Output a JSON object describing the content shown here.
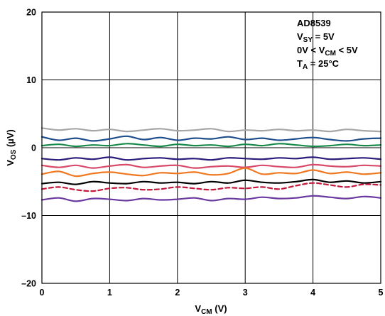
{
  "chart_data": {
    "type": "line",
    "title": "",
    "xlabel": {
      "main": "V",
      "sub": "CM",
      "suffix": " (V)"
    },
    "ylabel": {
      "main": "V",
      "sub": "OS",
      "suffix": " (µV)"
    },
    "xlim": [
      0,
      5
    ],
    "ylim": [
      -20,
      20
    ],
    "x_ticks": [
      0,
      1,
      2,
      3,
      4,
      5
    ],
    "y_ticks": [
      -20,
      -10,
      0,
      10,
      20
    ],
    "y_tick_labels": [
      "–20",
      "–10",
      "0",
      "10",
      "20"
    ],
    "grid": true,
    "legend": "none",
    "annotations": [
      {
        "parts": [
          {
            "t": "AD8539"
          }
        ]
      },
      {
        "parts": [
          {
            "t": "V"
          },
          {
            "t": "SY",
            "sub": true
          },
          {
            "t": " = 5V"
          }
        ]
      },
      {
        "parts": [
          {
            "t": "0V < V"
          },
          {
            "t": "CM",
            "sub": true
          },
          {
            "t": " < 5V"
          }
        ]
      },
      {
        "parts": [
          {
            "t": "T"
          },
          {
            "t": "A",
            "sub": true
          },
          {
            "t": " = 25°C"
          }
        ]
      }
    ],
    "x": [
      0,
      0.25,
      0.5,
      0.75,
      1,
      1.25,
      1.5,
      1.75,
      2,
      2.25,
      2.5,
      2.75,
      3,
      3.25,
      3.5,
      3.75,
      4,
      4.25,
      4.5,
      4.75,
      5
    ],
    "series": [
      {
        "color": "#a6a6a6",
        "dash": "none",
        "values": [
          2.9,
          2.6,
          2.8,
          2.5,
          2.7,
          2.4,
          2.6,
          2.8,
          2.5,
          2.6,
          2.8,
          2.4,
          2.6,
          2.5,
          2.7,
          2.5,
          2.6,
          2.4,
          2.7,
          2.5,
          2.4
        ]
      },
      {
        "color": "#1f4e8c",
        "dash": "none",
        "values": [
          1.6,
          1.1,
          1.4,
          1.0,
          1.3,
          1.7,
          1.2,
          1.5,
          1.1,
          1.4,
          1.3,
          1.6,
          1.2,
          1.4,
          1.1,
          1.3,
          1.5,
          1.2,
          1.0,
          1.3,
          1.4
        ]
      },
      {
        "color": "#1a8a4a",
        "dash": "none",
        "values": [
          0.3,
          0.5,
          0.2,
          0.4,
          0.3,
          0.6,
          0.4,
          0.2,
          0.5,
          0.3,
          0.4,
          0.2,
          0.5,
          0.3,
          0.6,
          0.4,
          0.2,
          0.3,
          0.5,
          0.3,
          0.4
        ]
      },
      {
        "color": "#2a1a7a",
        "dash": "none",
        "values": [
          -1.6,
          -1.8,
          -1.5,
          -1.7,
          -1.4,
          -1.8,
          -1.6,
          -1.5,
          -1.7,
          -1.6,
          -1.8,
          -1.5,
          -1.6,
          -1.7,
          -1.5,
          -1.6,
          -1.4,
          -1.7,
          -1.6,
          -1.5,
          -1.7
        ]
      },
      {
        "color": "#d94a6a",
        "dash": "none",
        "values": [
          -2.6,
          -2.9,
          -2.6,
          -3.0,
          -2.7,
          -2.5,
          -2.9,
          -2.7,
          -2.6,
          -3.0,
          -2.8,
          -2.7,
          -2.9,
          -2.6,
          -2.8,
          -2.9,
          -2.5,
          -2.7,
          -2.8,
          -2.6,
          -2.7
        ]
      },
      {
        "color": "#f07820",
        "dash": "none",
        "values": [
          -3.9,
          -3.5,
          -4.2,
          -3.8,
          -3.6,
          -3.9,
          -4.1,
          -3.7,
          -3.8,
          -3.6,
          -4.0,
          -3.8,
          -3.0,
          -3.9,
          -3.7,
          -3.8,
          -3.3,
          -3.8,
          -3.6,
          -3.9,
          -3.7
        ]
      },
      {
        "color": "#000000",
        "dash": "none",
        "values": [
          -5.3,
          -5.1,
          -5.4,
          -5.0,
          -5.2,
          -5.3,
          -5.0,
          -5.2,
          -5.1,
          -5.3,
          -5.0,
          -5.2,
          -4.8,
          -5.1,
          -5.2,
          -5.0,
          -4.7,
          -5.1,
          -4.9,
          -5.2,
          -5.0
        ]
      },
      {
        "color": "#c4183c",
        "dash": "6,4",
        "values": [
          -6.1,
          -5.8,
          -6.2,
          -6.4,
          -6.0,
          -5.9,
          -6.2,
          -6.1,
          -5.8,
          -6.0,
          -6.2,
          -5.9,
          -6.0,
          -5.8,
          -6.1,
          -5.6,
          -5.2,
          -5.5,
          -5.8,
          -5.4,
          -5.5
        ]
      },
      {
        "color": "#6a3aa0",
        "dash": "none",
        "values": [
          -7.7,
          -7.4,
          -7.9,
          -7.5,
          -7.6,
          -7.8,
          -7.5,
          -7.7,
          -7.6,
          -7.4,
          -7.8,
          -7.5,
          -7.6,
          -7.3,
          -7.5,
          -7.4,
          -7.1,
          -7.3,
          -7.5,
          -7.2,
          -7.4
        ]
      }
    ]
  }
}
